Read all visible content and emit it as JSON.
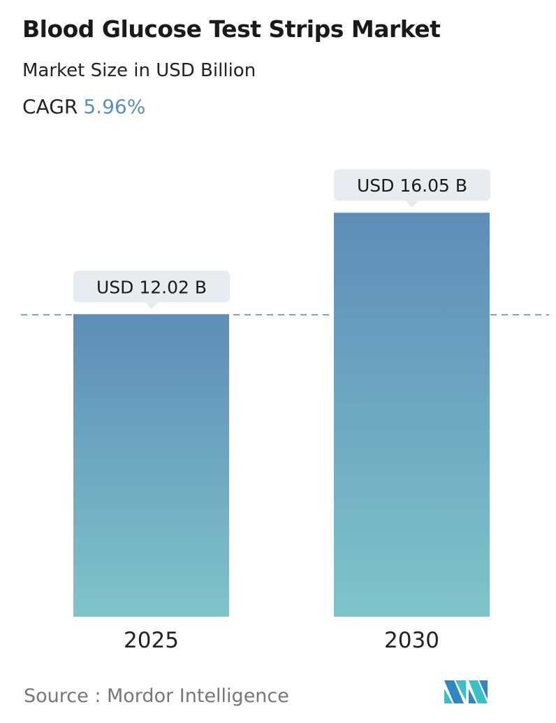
{
  "title": "Blood Glucose Test Strips Market",
  "subtitle": "Market Size in USD Billion",
  "cagr": {
    "label": "CAGR",
    "value": "5.96%"
  },
  "source": "Source :  Mordor Intelligence",
  "colors": {
    "bar_top": "#5e8db8",
    "bar_bottom": "#7fc4ca",
    "dashed_line": "#5a86b0",
    "label_bg": "#e6ecef",
    "cagr_value": "#5b8fb9"
  },
  "logo": "mordor-intelligence-logo",
  "chart_data": {
    "type": "bar",
    "categories": [
      "2025",
      "2030"
    ],
    "values": [
      12.02,
      16.05
    ],
    "data_labels": [
      "USD 12.02 B",
      "USD 16.05 B"
    ],
    "unit": "USD Billion",
    "reference_line": {
      "value": 12.02,
      "style": "dashed"
    },
    "grid": false,
    "legend": "none"
  }
}
